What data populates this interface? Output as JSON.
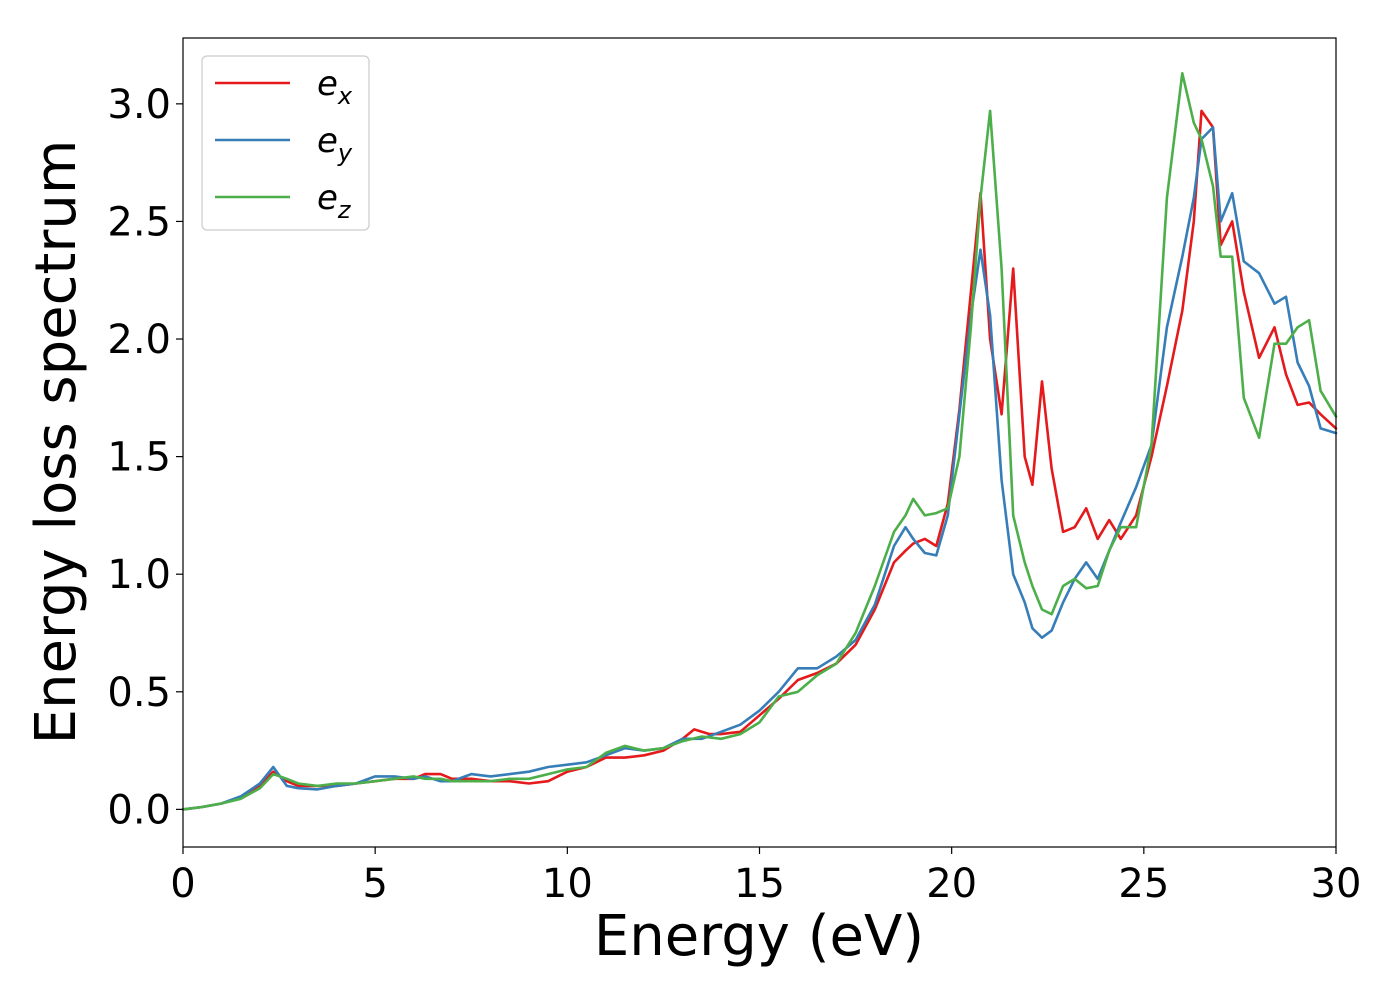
{
  "chart_data": {
    "type": "line",
    "xlabel": "Energy (eV)",
    "ylabel": "Energy loss spectrum",
    "xlim": [
      0,
      30
    ],
    "ylim": [
      -0.16,
      3.28
    ],
    "x_ticks": [
      "0",
      "5",
      "10",
      "15",
      "20",
      "25",
      "30"
    ],
    "y_ticks": [
      "0.0",
      "0.5",
      "1.0",
      "1.5",
      "2.0",
      "2.5",
      "3.0"
    ],
    "grid": false,
    "legend_position": "top-left",
    "series": [
      {
        "name": "e_x",
        "label_base": "e",
        "label_sub": "x",
        "color": "#e41a1c",
        "points": [
          [
            0,
            0.0
          ],
          [
            0.5,
            0.01
          ],
          [
            1.0,
            0.025
          ],
          [
            1.5,
            0.05
          ],
          [
            2.0,
            0.1
          ],
          [
            2.35,
            0.16
          ],
          [
            2.7,
            0.12
          ],
          [
            3.0,
            0.1
          ],
          [
            3.5,
            0.1
          ],
          [
            4.0,
            0.1
          ],
          [
            4.5,
            0.11
          ],
          [
            5.0,
            0.12
          ],
          [
            5.5,
            0.13
          ],
          [
            6.0,
            0.13
          ],
          [
            6.3,
            0.15
          ],
          [
            6.7,
            0.15
          ],
          [
            7.0,
            0.13
          ],
          [
            7.5,
            0.13
          ],
          [
            8.0,
            0.12
          ],
          [
            8.5,
            0.12
          ],
          [
            9.0,
            0.11
          ],
          [
            9.5,
            0.12
          ],
          [
            10.0,
            0.16
          ],
          [
            10.5,
            0.18
          ],
          [
            11.0,
            0.22
          ],
          [
            11.5,
            0.22
          ],
          [
            12.0,
            0.23
          ],
          [
            12.5,
            0.25
          ],
          [
            13.0,
            0.3
          ],
          [
            13.3,
            0.34
          ],
          [
            13.7,
            0.32
          ],
          [
            14.0,
            0.32
          ],
          [
            14.5,
            0.33
          ],
          [
            15.0,
            0.4
          ],
          [
            15.5,
            0.47
          ],
          [
            16.0,
            0.55
          ],
          [
            16.5,
            0.58
          ],
          [
            17.0,
            0.62
          ],
          [
            17.5,
            0.7
          ],
          [
            18.0,
            0.85
          ],
          [
            18.5,
            1.05
          ],
          [
            18.8,
            1.1
          ],
          [
            19.0,
            1.13
          ],
          [
            19.3,
            1.15
          ],
          [
            19.6,
            1.12
          ],
          [
            19.9,
            1.3
          ],
          [
            20.2,
            1.7
          ],
          [
            20.5,
            2.2
          ],
          [
            20.75,
            2.62
          ],
          [
            21.0,
            2.0
          ],
          [
            21.3,
            1.68
          ],
          [
            21.6,
            2.3
          ],
          [
            21.9,
            1.5
          ],
          [
            22.1,
            1.38
          ],
          [
            22.35,
            1.82
          ],
          [
            22.6,
            1.45
          ],
          [
            22.9,
            1.18
          ],
          [
            23.2,
            1.2
          ],
          [
            23.5,
            1.28
          ],
          [
            23.8,
            1.15
          ],
          [
            24.1,
            1.23
          ],
          [
            24.4,
            1.15
          ],
          [
            24.8,
            1.25
          ],
          [
            25.2,
            1.5
          ],
          [
            25.6,
            1.8
          ],
          [
            26.0,
            2.12
          ],
          [
            26.3,
            2.5
          ],
          [
            26.5,
            2.97
          ],
          [
            26.8,
            2.9
          ],
          [
            27.0,
            2.4
          ],
          [
            27.3,
            2.5
          ],
          [
            27.6,
            2.2
          ],
          [
            28.0,
            1.92
          ],
          [
            28.4,
            2.05
          ],
          [
            28.7,
            1.85
          ],
          [
            29.0,
            1.72
          ],
          [
            29.3,
            1.73
          ],
          [
            29.6,
            1.68
          ],
          [
            30.0,
            1.62
          ]
        ]
      },
      {
        "name": "e_y",
        "label_base": "e",
        "label_sub": "y",
        "color": "#377eb8",
        "points": [
          [
            0,
            0.0
          ],
          [
            0.5,
            0.01
          ],
          [
            1.0,
            0.025
          ],
          [
            1.5,
            0.055
          ],
          [
            2.0,
            0.11
          ],
          [
            2.35,
            0.18
          ],
          [
            2.7,
            0.1
          ],
          [
            3.0,
            0.09
          ],
          [
            3.5,
            0.085
          ],
          [
            4.0,
            0.1
          ],
          [
            4.5,
            0.11
          ],
          [
            5.0,
            0.14
          ],
          [
            5.5,
            0.14
          ],
          [
            6.0,
            0.13
          ],
          [
            6.3,
            0.14
          ],
          [
            6.7,
            0.12
          ],
          [
            7.0,
            0.12
          ],
          [
            7.5,
            0.15
          ],
          [
            8.0,
            0.14
          ],
          [
            8.5,
            0.15
          ],
          [
            9.0,
            0.16
          ],
          [
            9.5,
            0.18
          ],
          [
            10.0,
            0.19
          ],
          [
            10.5,
            0.2
          ],
          [
            11.0,
            0.23
          ],
          [
            11.5,
            0.26
          ],
          [
            12.0,
            0.25
          ],
          [
            12.5,
            0.26
          ],
          [
            13.0,
            0.3
          ],
          [
            13.5,
            0.3
          ],
          [
            14.0,
            0.33
          ],
          [
            14.5,
            0.36
          ],
          [
            15.0,
            0.42
          ],
          [
            15.5,
            0.5
          ],
          [
            16.0,
            0.6
          ],
          [
            16.5,
            0.6
          ],
          [
            17.0,
            0.65
          ],
          [
            17.5,
            0.72
          ],
          [
            18.0,
            0.87
          ],
          [
            18.5,
            1.12
          ],
          [
            18.8,
            1.2
          ],
          [
            19.0,
            1.15
          ],
          [
            19.3,
            1.09
          ],
          [
            19.6,
            1.08
          ],
          [
            19.9,
            1.25
          ],
          [
            20.2,
            1.68
          ],
          [
            20.5,
            2.1
          ],
          [
            20.75,
            2.38
          ],
          [
            21.0,
            2.1
          ],
          [
            21.3,
            1.4
          ],
          [
            21.6,
            1.0
          ],
          [
            21.9,
            0.88
          ],
          [
            22.1,
            0.77
          ],
          [
            22.35,
            0.73
          ],
          [
            22.6,
            0.76
          ],
          [
            22.9,
            0.88
          ],
          [
            23.2,
            0.98
          ],
          [
            23.5,
            1.05
          ],
          [
            23.8,
            0.98
          ],
          [
            24.1,
            1.1
          ],
          [
            24.4,
            1.22
          ],
          [
            24.8,
            1.37
          ],
          [
            25.2,
            1.55
          ],
          [
            25.6,
            2.05
          ],
          [
            26.0,
            2.35
          ],
          [
            26.3,
            2.6
          ],
          [
            26.5,
            2.85
          ],
          [
            26.8,
            2.9
          ],
          [
            27.0,
            2.5
          ],
          [
            27.3,
            2.62
          ],
          [
            27.6,
            2.33
          ],
          [
            28.0,
            2.28
          ],
          [
            28.4,
            2.15
          ],
          [
            28.7,
            2.18
          ],
          [
            29.0,
            1.9
          ],
          [
            29.3,
            1.8
          ],
          [
            29.6,
            1.62
          ],
          [
            30.0,
            1.6
          ]
        ]
      },
      {
        "name": "e_z",
        "label_base": "e",
        "label_sub": "z",
        "color": "#4daf4a",
        "points": [
          [
            0,
            0.0
          ],
          [
            0.5,
            0.01
          ],
          [
            1.0,
            0.025
          ],
          [
            1.5,
            0.045
          ],
          [
            2.0,
            0.09
          ],
          [
            2.35,
            0.15
          ],
          [
            2.7,
            0.13
          ],
          [
            3.0,
            0.11
          ],
          [
            3.5,
            0.1
          ],
          [
            4.0,
            0.11
          ],
          [
            4.5,
            0.11
          ],
          [
            5.0,
            0.12
          ],
          [
            5.5,
            0.13
          ],
          [
            6.0,
            0.14
          ],
          [
            6.3,
            0.13
          ],
          [
            6.7,
            0.13
          ],
          [
            7.0,
            0.12
          ],
          [
            7.5,
            0.12
          ],
          [
            8.0,
            0.12
          ],
          [
            8.5,
            0.13
          ],
          [
            9.0,
            0.13
          ],
          [
            9.5,
            0.15
          ],
          [
            10.0,
            0.17
          ],
          [
            10.5,
            0.18
          ],
          [
            11.0,
            0.24
          ],
          [
            11.5,
            0.27
          ],
          [
            12.0,
            0.25
          ],
          [
            12.5,
            0.26
          ],
          [
            13.0,
            0.29
          ],
          [
            13.5,
            0.31
          ],
          [
            14.0,
            0.3
          ],
          [
            14.5,
            0.32
          ],
          [
            15.0,
            0.37
          ],
          [
            15.5,
            0.48
          ],
          [
            16.0,
            0.5
          ],
          [
            16.5,
            0.57
          ],
          [
            17.0,
            0.62
          ],
          [
            17.5,
            0.75
          ],
          [
            18.0,
            0.95
          ],
          [
            18.5,
            1.18
          ],
          [
            18.8,
            1.25
          ],
          [
            19.0,
            1.32
          ],
          [
            19.3,
            1.25
          ],
          [
            19.6,
            1.26
          ],
          [
            19.9,
            1.28
          ],
          [
            20.2,
            1.5
          ],
          [
            20.5,
            2.05
          ],
          [
            20.75,
            2.6
          ],
          [
            21.0,
            2.97
          ],
          [
            21.3,
            2.3
          ],
          [
            21.6,
            1.25
          ],
          [
            21.9,
            1.05
          ],
          [
            22.1,
            0.95
          ],
          [
            22.35,
            0.85
          ],
          [
            22.6,
            0.83
          ],
          [
            22.9,
            0.95
          ],
          [
            23.2,
            0.98
          ],
          [
            23.5,
            0.94
          ],
          [
            23.8,
            0.95
          ],
          [
            24.1,
            1.1
          ],
          [
            24.4,
            1.2
          ],
          [
            24.8,
            1.2
          ],
          [
            25.2,
            1.55
          ],
          [
            25.6,
            2.6
          ],
          [
            26.0,
            3.13
          ],
          [
            26.3,
            2.92
          ],
          [
            26.5,
            2.85
          ],
          [
            26.8,
            2.65
          ],
          [
            27.0,
            2.35
          ],
          [
            27.3,
            2.35
          ],
          [
            27.6,
            1.75
          ],
          [
            28.0,
            1.58
          ],
          [
            28.4,
            1.98
          ],
          [
            28.7,
            1.98
          ],
          [
            29.0,
            2.05
          ],
          [
            29.3,
            2.08
          ],
          [
            29.6,
            1.78
          ],
          [
            30.0,
            1.67
          ]
        ]
      }
    ]
  }
}
